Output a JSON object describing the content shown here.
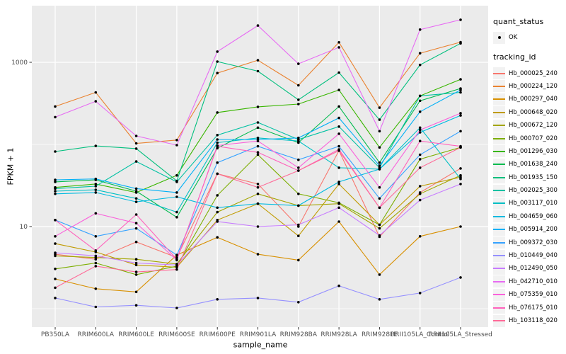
{
  "panel": {
    "bg_color": "#EBEBEB",
    "grid_color": "#FFFFFF",
    "tick_color": "#333333",
    "tick_label_color": "#4D4D4D",
    "point_color": "#000000",
    "legend_key_bg": "#F2F2F2"
  },
  "chart_data": {
    "type": "line",
    "title": "",
    "xlabel": "sample_name",
    "ylabel": "FPKM + 1",
    "y_scale": "log10",
    "ylim": [
      0.9,
      5000
    ],
    "y_ticks": [
      10,
      1000
    ],
    "y_tick_labels": [
      "10",
      "1000"
    ],
    "grid_major_y": [
      10,
      1000
    ],
    "grid_minor_y": [
      1,
      100
    ],
    "legend_position": "right",
    "legend": {
      "quant_status_title": "quant_status",
      "quant_status_items": [
        {
          "label": "OK",
          "marker": "point"
        }
      ],
      "tracking_id_title": "tracking_id"
    },
    "categories": [
      "PB350LA",
      "RRIM600LA",
      "RRIM600LE",
      "RRIM600SE",
      "RRIM600PE",
      "RRIM901LA",
      "RRIM928BA",
      "RRIM928LA",
      "RRIM928LE",
      "RRII105LA_Control",
      "RRII105LA_Stressed"
    ],
    "series": [
      {
        "name": "Hb_000025_240",
        "color": "#F8766D",
        "values": [
          4.6,
          4.0,
          6.5,
          4.2,
          44,
          33,
          10,
          84,
          7.5,
          26,
          51
        ]
      },
      {
        "name": "Hb_000224_120",
        "color": "#EA8331",
        "values": [
          290,
          430,
          103,
          113,
          740,
          1060,
          525,
          1750,
          280,
          1290,
          1760
        ]
      },
      {
        "name": "Hb_000297_040",
        "color": "#D89000",
        "values": [
          2.3,
          1.75,
          1.6,
          4.5,
          7.4,
          4.6,
          3.9,
          11.5,
          2.6,
          7.6,
          10
        ]
      },
      {
        "name": "Hb_000648_020",
        "color": "#C09B00",
        "values": [
          6.2,
          4.9,
          3.4,
          3.2,
          12,
          19,
          7.7,
          33,
          10.5,
          31,
          40
        ]
      },
      {
        "name": "Hb_000672_120",
        "color": "#A3A500",
        "values": [
          4.4,
          4.2,
          4.0,
          3.5,
          15,
          25,
          18,
          19,
          9.5,
          25,
          42
        ]
      },
      {
        "name": "Hb_000707_020",
        "color": "#7CAE00",
        "values": [
          3.05,
          3.6,
          2.6,
          3.3,
          24,
          75,
          25,
          19.5,
          10.5,
          66,
          92
        ]
      },
      {
        "name": "Hb_001296_030",
        "color": "#39B600",
        "values": [
          30,
          33,
          26,
          42,
          245,
          287,
          310,
          460,
          92,
          390,
          620
        ]
      },
      {
        "name": "Hb_001638_240",
        "color": "#00BB4E",
        "values": [
          35,
          37,
          27,
          13,
          90,
          160,
          105,
          290,
          60,
          340,
          480
        ]
      },
      {
        "name": "Hb_001935_150",
        "color": "#00BF7D",
        "values": [
          82,
          96,
          89,
          36,
          1020,
          780,
          350,
          750,
          200,
          930,
          1700
        ]
      },
      {
        "name": "Hb_002025_300",
        "color": "#00C1A3",
        "values": [
          29,
          31,
          62,
          35,
          130,
          185,
          115,
          165,
          52,
          390,
          430
        ]
      },
      {
        "name": "Hb_003117_010",
        "color": "#00BFC4",
        "values": [
          27,
          28,
          22,
          15,
          105,
          120,
          110,
          52,
          50,
          160,
          38
        ]
      },
      {
        "name": "Hb_004659_060",
        "color": "#00BAE0",
        "values": [
          25,
          26,
          20,
          23,
          17,
          19,
          18,
          35,
          50,
          140,
          225
        ]
      },
      {
        "name": "Hb_005914_200",
        "color": "#00B0F6",
        "values": [
          37,
          38,
          29,
          26,
          115,
          115,
          120,
          210,
          55,
          250,
          460
        ]
      },
      {
        "name": "Hb_009372_030",
        "color": "#35A2FF",
        "values": [
          12,
          7.6,
          9.5,
          4.5,
          60,
          95,
          65,
          95,
          22,
          75,
          145
        ]
      },
      {
        "name": "Hb_010449_040",
        "color": "#9590FF",
        "values": [
          1.35,
          1.05,
          1.1,
          1.02,
          1.3,
          1.35,
          1.2,
          1.9,
          1.3,
          1.55,
          2.4
        ]
      },
      {
        "name": "Hb_012490_050",
        "color": "#C77CFF",
        "values": [
          4.8,
          4.4,
          3.6,
          3.4,
          11.5,
          10,
          10.5,
          17,
          7.8,
          21,
          33
        ]
      },
      {
        "name": "Hb_042710_010",
        "color": "#E76BF3",
        "values": [
          215,
          335,
          127,
          98,
          1350,
          2800,
          960,
          1520,
          145,
          2500,
          3300
        ]
      },
      {
        "name": "Hb_075359_010",
        "color": "#FA62DB",
        "values": [
          7.6,
          14.5,
          11,
          3.9,
          97,
          110,
          52,
          135,
          30,
          150,
          240
        ]
      },
      {
        "name": "Hb_076175_010",
        "color": "#FF62BC",
        "values": [
          12,
          5.1,
          14,
          4.0,
          95,
          80,
          48,
          87,
          17,
          110,
          95
        ]
      },
      {
        "name": "Hb_103118_020",
        "color": "#FF6A98",
        "values": [
          1.8,
          3.3,
          2.8,
          3.0,
          44,
          30,
          48,
          84,
          17,
          52,
          92
        ]
      }
    ]
  }
}
